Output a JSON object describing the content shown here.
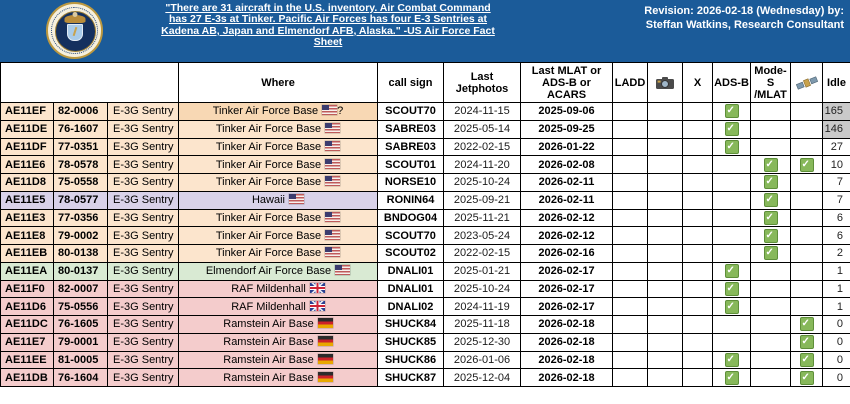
{
  "header": {
    "note": "\"There are 31 aircraft in the U.S. inventory. Air Combat Command has 27 E-3s at Tinker. Pacific Air Forces has four E-3 Sentries at Kadena AB, Japan and Elmendorf AFB, Alaska.\" -US Air Force Fact Sheet",
    "revision_line1": "Revision: 2026-02-18 (Wednesday) by:",
    "revision_line2": "Steffan Watkins, Research Consultant",
    "logo": "us-air-force-seal",
    "banner_color": "#1b5b99"
  },
  "table": {
    "columns": {
      "where": "Where",
      "call_sign": "call sign",
      "last_jetphotos": "Last Jetphotos",
      "last_mlat": "Last MLAT or ADS-B or ACARS",
      "ladd": "LADD",
      "camera": "camera-icon",
      "x": "X",
      "adsb": "ADS-B",
      "mode_s": "Mode-S /MLAT",
      "satellite": "satellite-icon",
      "idle": "Idle"
    },
    "colors": {
      "tinker_row": "#fce5cd",
      "tinker_first_where": "#f8d8b4",
      "hawaii_row": "#d9d2e9",
      "elmendorf_row": "#d9ead3",
      "europe_row": "#f4cccc",
      "idle_gray": "#c9c9c9",
      "check_green": "#87b85a"
    },
    "rows": [
      {
        "hex": "AE11EF",
        "serial": "82-0006",
        "type": "E-3G Sentry",
        "where": "Tinker Air Force Base",
        "flag": "us",
        "where_suffix": "?",
        "call_sign": "SCOUT70",
        "last_jetphotos": "2024-11-15",
        "last_mlat": "2025-09-06",
        "ladd": false,
        "camera": false,
        "x": false,
        "adsb": true,
        "mode_s": false,
        "satellite": false,
        "idle": "165",
        "color": "#fce5cd",
        "where_bg": "#f8d8b4",
        "idle_bg": "#c9c9c9"
      },
      {
        "hex": "AE11DE",
        "serial": "76-1607",
        "type": "E-3G Sentry",
        "where": "Tinker Air Force Base",
        "flag": "us",
        "where_suffix": "",
        "call_sign": "SABRE03",
        "last_jetphotos": "2025-05-14",
        "last_mlat": "2025-09-25",
        "ladd": false,
        "camera": false,
        "x": false,
        "adsb": true,
        "mode_s": false,
        "satellite": false,
        "idle": "146",
        "color": "#fce5cd",
        "idle_bg": "#c9c9c9"
      },
      {
        "hex": "AE11DF",
        "serial": "77-0351",
        "type": "E-3G Sentry",
        "where": "Tinker Air Force Base",
        "flag": "us",
        "where_suffix": "",
        "call_sign": "SABRE03",
        "last_jetphotos": "2022-02-15",
        "last_mlat": "2026-01-22",
        "ladd": false,
        "camera": false,
        "x": false,
        "adsb": true,
        "mode_s": false,
        "satellite": false,
        "idle": "27",
        "color": "#fce5cd"
      },
      {
        "hex": "AE11E6",
        "serial": "78-0578",
        "type": "E-3G Sentry",
        "where": "Tinker Air Force Base",
        "flag": "us",
        "where_suffix": "",
        "call_sign": "SCOUT01",
        "last_jetphotos": "2024-11-20",
        "last_mlat": "2026-02-08",
        "ladd": false,
        "camera": false,
        "x": false,
        "adsb": false,
        "mode_s": true,
        "satellite": true,
        "idle": "10",
        "color": "#fce5cd"
      },
      {
        "hex": "AE11D8",
        "serial": "75-0558",
        "type": "E-3G Sentry",
        "where": "Tinker Air Force Base",
        "flag": "us",
        "where_suffix": "",
        "call_sign": "NORSE10",
        "last_jetphotos": "2025-10-24",
        "last_mlat": "2026-02-11",
        "ladd": false,
        "camera": false,
        "x": false,
        "adsb": false,
        "mode_s": true,
        "satellite": false,
        "idle": "7",
        "color": "#fce5cd"
      },
      {
        "hex": "AE11E5",
        "serial": "78-0577",
        "type": "E-3G Sentry",
        "where": "Hawaii",
        "flag": "us",
        "where_suffix": "",
        "call_sign": "RONIN64",
        "last_jetphotos": "2025-09-21",
        "last_mlat": "2026-02-11",
        "ladd": false,
        "camera": false,
        "x": false,
        "adsb": false,
        "mode_s": true,
        "satellite": false,
        "idle": "7",
        "color": "#d9d2e9"
      },
      {
        "hex": "AE11E3",
        "serial": "77-0356",
        "type": "E-3G Sentry",
        "where": "Tinker Air Force Base",
        "flag": "us",
        "where_suffix": "",
        "call_sign": "BNDOG04",
        "last_jetphotos": "2025-11-21",
        "last_mlat": "2026-02-12",
        "ladd": false,
        "camera": false,
        "x": false,
        "adsb": false,
        "mode_s": true,
        "satellite": false,
        "idle": "6",
        "color": "#fce5cd"
      },
      {
        "hex": "AE11E8",
        "serial": "79-0002",
        "type": "E-3G Sentry",
        "where": "Tinker Air Force Base",
        "flag": "us",
        "where_suffix": "",
        "call_sign": "SCOUT70",
        "last_jetphotos": "2023-05-24",
        "last_mlat": "2026-02-12",
        "ladd": false,
        "camera": false,
        "x": false,
        "adsb": false,
        "mode_s": true,
        "satellite": false,
        "idle": "6",
        "color": "#fce5cd"
      },
      {
        "hex": "AE11EB",
        "serial": "80-0138",
        "type": "E-3G Sentry",
        "where": "Tinker Air Force Base",
        "flag": "us",
        "where_suffix": "",
        "call_sign": "SCOUT02",
        "last_jetphotos": "2022-02-15",
        "last_mlat": "2026-02-16",
        "ladd": false,
        "camera": false,
        "x": false,
        "adsb": false,
        "mode_s": true,
        "satellite": false,
        "idle": "2",
        "color": "#fce5cd"
      },
      {
        "hex": "AE11EA",
        "serial": "80-0137",
        "type": "E-3G Sentry",
        "where": "Elmendorf Air Force Base",
        "flag": "us",
        "where_suffix": "",
        "call_sign": "DNALI01",
        "last_jetphotos": "2025-01-21",
        "last_mlat": "2026-02-17",
        "ladd": false,
        "camera": false,
        "x": false,
        "adsb": true,
        "mode_s": false,
        "satellite": false,
        "idle": "1",
        "color": "#d9ead3"
      },
      {
        "hex": "AE11F0",
        "serial": "82-0007",
        "type": "E-3G Sentry",
        "where": "RAF Mildenhall",
        "flag": "uk",
        "where_suffix": "",
        "call_sign": "DNALI01",
        "last_jetphotos": "2025-10-24",
        "last_mlat": "2026-02-17",
        "ladd": false,
        "camera": false,
        "x": false,
        "adsb": true,
        "mode_s": false,
        "satellite": false,
        "idle": "1",
        "color": "#f4cccc"
      },
      {
        "hex": "AE11D6",
        "serial": "75-0556",
        "type": "E-3G Sentry",
        "where": "RAF Mildenhall",
        "flag": "uk",
        "where_suffix": "",
        "call_sign": "DNALI02",
        "last_jetphotos": "2024-11-19",
        "last_mlat": "2026-02-17",
        "ladd": false,
        "camera": false,
        "x": false,
        "adsb": true,
        "mode_s": false,
        "satellite": false,
        "idle": "1",
        "color": "#f4cccc"
      },
      {
        "hex": "AE11DC",
        "serial": "76-1605",
        "type": "E-3G Sentry",
        "where": "Ramstein Air Base",
        "flag": "de",
        "where_suffix": "",
        "call_sign": "SHUCK84",
        "last_jetphotos": "2025-11-18",
        "last_mlat": "2026-02-18",
        "ladd": false,
        "camera": false,
        "x": false,
        "adsb": false,
        "mode_s": false,
        "satellite": true,
        "idle": "0",
        "color": "#f4cccc"
      },
      {
        "hex": "AE11E7",
        "serial": "79-0001",
        "type": "E-3G Sentry",
        "where": "Ramstein Air Base",
        "flag": "de",
        "where_suffix": "",
        "call_sign": "SHUCK85",
        "last_jetphotos": "2025-12-30",
        "last_mlat": "2026-02-18",
        "ladd": false,
        "camera": false,
        "x": false,
        "adsb": false,
        "mode_s": false,
        "satellite": true,
        "idle": "0",
        "color": "#f4cccc"
      },
      {
        "hex": "AE11EE",
        "serial": "81-0005",
        "type": "E-3G Sentry",
        "where": "Ramstein Air Base",
        "flag": "de",
        "where_suffix": "",
        "call_sign": "SHUCK86",
        "last_jetphotos": "2026-01-06",
        "last_mlat": "2026-02-18",
        "ladd": false,
        "camera": false,
        "x": false,
        "adsb": true,
        "mode_s": false,
        "satellite": true,
        "idle": "0",
        "color": "#f4cccc"
      },
      {
        "hex": "AE11DB",
        "serial": "76-1604",
        "type": "E-3G Sentry",
        "where": "Ramstein Air Base",
        "flag": "de",
        "where_suffix": "",
        "call_sign": "SHUCK87",
        "last_jetphotos": "2025-12-04",
        "last_mlat": "2026-02-18",
        "ladd": false,
        "camera": false,
        "x": false,
        "adsb": true,
        "mode_s": false,
        "satellite": true,
        "idle": "0",
        "color": "#f4cccc"
      }
    ]
  }
}
